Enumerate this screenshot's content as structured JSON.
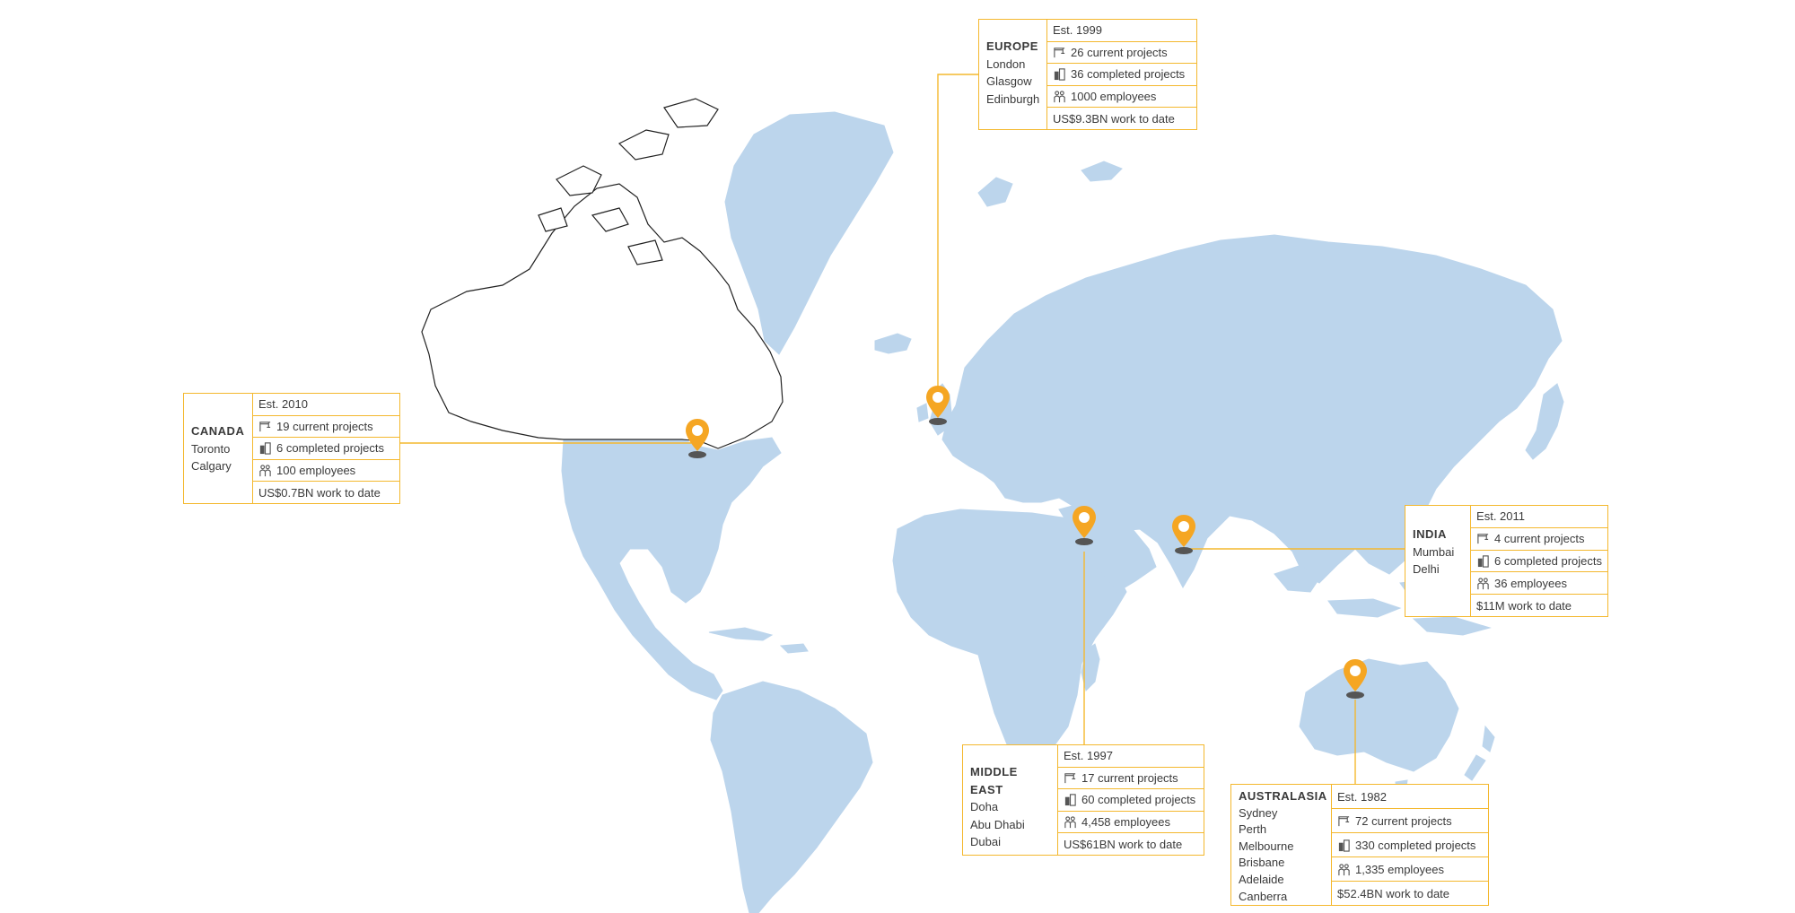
{
  "colors": {
    "land": "#bcd5ec",
    "accent": "#f4b82e",
    "pin": "#f5a623",
    "pin_base": "#555555"
  },
  "regions": [
    {
      "id": "canada",
      "name": "CANADA",
      "cities": [
        "Toronto",
        "Calgary"
      ],
      "established": "Est. 2010",
      "current_projects": "19 current projects",
      "completed_projects": "6 completed projects",
      "employees": "100 employees",
      "work_to_date": "US$0.7BN work to date"
    },
    {
      "id": "europe",
      "name": "EUROPE",
      "cities": [
        "London",
        "Glasgow",
        "Edinburgh"
      ],
      "established": "Est. 1999",
      "current_projects": "26 current projects",
      "completed_projects": "36 completed projects",
      "employees": "1000 employees",
      "work_to_date": "US$9.3BN work to date"
    },
    {
      "id": "india",
      "name": "INDIA",
      "cities": [
        "Mumbai",
        "Delhi"
      ],
      "established": "Est. 2011",
      "current_projects": "4 current projects",
      "completed_projects": "6 completed projects",
      "employees": "36 employees",
      "work_to_date": "$11M work to date"
    },
    {
      "id": "middle-east",
      "name": "MIDDLE EAST",
      "cities": [
        "Doha",
        "Abu Dhabi",
        "Dubai"
      ],
      "established": "Est. 1997",
      "current_projects": "17 current projects",
      "completed_projects": "60 completed projects",
      "employees": "4,458 employees",
      "work_to_date": "US$61BN work to date"
    },
    {
      "id": "australasia",
      "name": "AUSTRALASIA",
      "cities": [
        "Sydney",
        "Perth",
        "Melbourne",
        "Brisbane",
        "Adelaide",
        "Canberra"
      ],
      "established": "Est. 1982",
      "current_projects": "72 current projects",
      "completed_projects": "330 completed projects",
      "employees": "1,335 employees",
      "work_to_date": "$52.4BN work to date"
    }
  ]
}
